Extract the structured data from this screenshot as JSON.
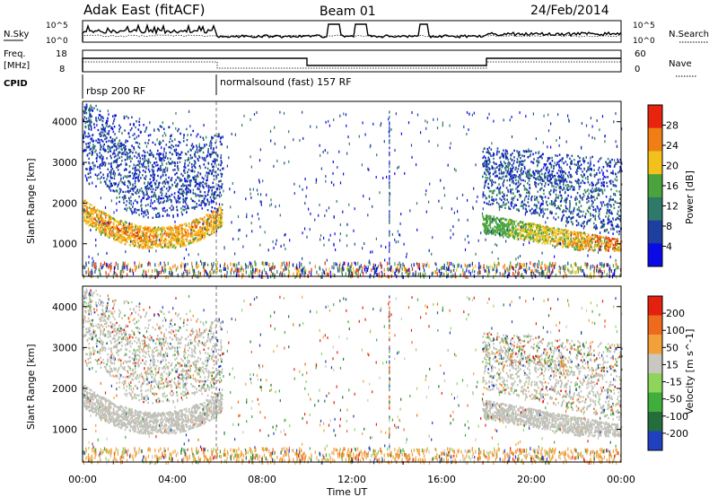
{
  "header": {
    "title": "Adak East (fitACF)",
    "beam": "Beam 01",
    "date": "24/Feb/2014"
  },
  "time_axis": {
    "label": "Time UT",
    "ticks": [
      "00:00",
      "04:00",
      "08:00",
      "12:00",
      "16:00",
      "20:00",
      "00:00"
    ],
    "range_hours": [
      0,
      24
    ]
  },
  "nsky_panel": {
    "left_label": "N.Sky",
    "right_label": "N.Search",
    "left_ticks": [
      "10^5",
      "10^0"
    ],
    "right_ticks": [
      "10^5",
      "10^0"
    ]
  },
  "freq_panel": {
    "left_label_top": "Freq.",
    "left_label_unit": "[MHz]",
    "right_label": "Nave",
    "left_ticks": [
      "18",
      "8"
    ],
    "right_ticks": [
      "60",
      "0"
    ]
  },
  "cpid_panel": {
    "label": "CPID",
    "segments": [
      {
        "label": "rbsp 200 RF",
        "start_hour": 0
      },
      {
        "label": "normalsound (fast) 157 RF",
        "start_hour": 6
      }
    ]
  },
  "chart_data": [
    {
      "type": "heatmap",
      "name": "power",
      "ylabel": "Slant Range [km]",
      "ylim": [
        200,
        4500
      ],
      "yticks": [
        "1000",
        "2000",
        "3000",
        "4000"
      ],
      "colorbar": {
        "label": "Power [dB]",
        "ticks": [
          "4",
          "8",
          "12",
          "16",
          "20",
          "24",
          "28"
        ],
        "range": [
          0,
          32
        ],
        "colors": [
          "#0a0ae6",
          "#1e3fa0",
          "#2e7a6a",
          "#4aa33c",
          "#f2c21a",
          "#f07e14",
          "#e8240e"
        ]
      },
      "regions": [
        {
          "hours": [
            0,
            6
          ],
          "range_km": [
            1000,
            4400
          ],
          "description_values": "strong arc near 1100-1700 km"
        },
        {
          "hours": [
            18,
            24
          ],
          "range_km": [
            900,
            3500
          ],
          "description_values": "strong band 900-1400 km"
        }
      ]
    },
    {
      "type": "heatmap",
      "name": "velocity",
      "ylabel": "Slant Range [km]",
      "ylim": [
        200,
        4500
      ],
      "yticks": [
        "1000",
        "2000",
        "3000",
        "4000"
      ],
      "colorbar": {
        "label": "Velocity [m s^-1]",
        "ticks": [
          "200",
          "100",
          "50",
          "15",
          "-15",
          "-50",
          "-100",
          "-200"
        ],
        "range": [
          -250,
          250
        ],
        "colors": [
          "#2040c0",
          "#246e3c",
          "#3fae3a",
          "#8fd55c",
          "#c8c8c0",
          "#f2a13a",
          "#ee6a1c",
          "#e4200e"
        ]
      }
    }
  ],
  "colors": {
    "gridline": "#aaaaaa",
    "ground_scatter": "#c0c0b8"
  }
}
